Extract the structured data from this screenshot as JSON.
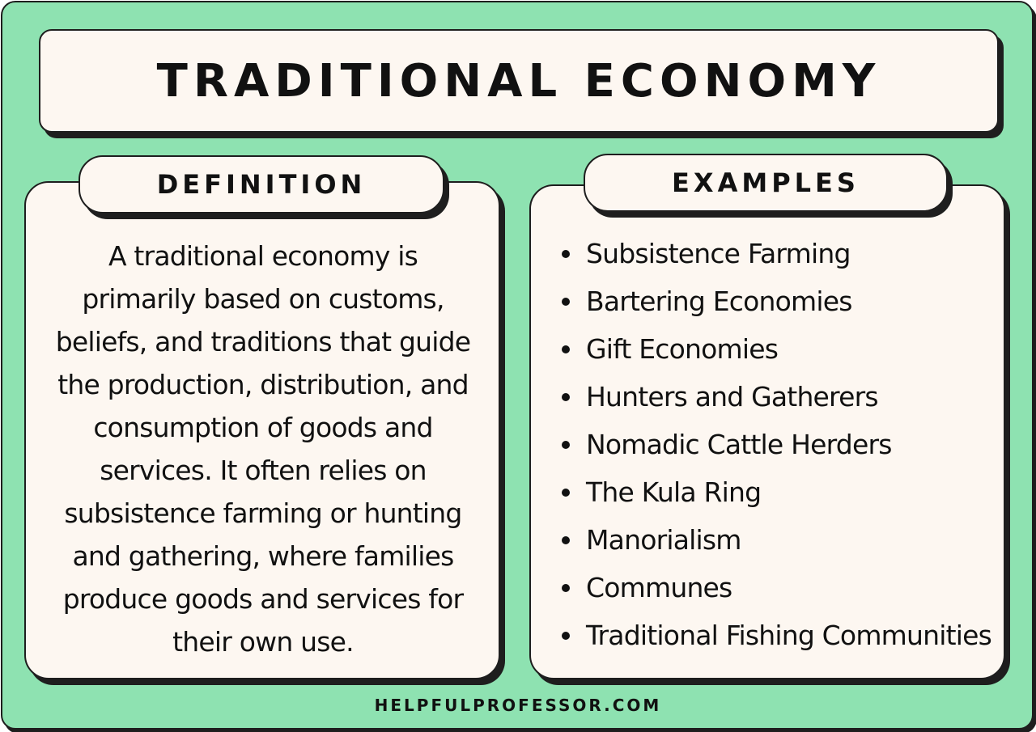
{
  "title": "TRADITIONAL ECONOMY",
  "definition": {
    "heading": "DEFINITION",
    "text": "A traditional economy is primarily based on customs, beliefs, and traditions that guide the production, distribution, and consumption of goods and services. It often relies on subsistence farming or hunting and gathering, where families produce goods and services for their own use."
  },
  "examples": {
    "heading": "EXAMPLES",
    "items": [
      "Subsistence Farming",
      "Bartering Economies",
      "Gift Economies",
      "Hunters and Gatherers",
      "Nomadic Cattle Herders",
      "The Kula Ring",
      "Manorialism",
      "Communes",
      "Traditional Fishing Communities"
    ]
  },
  "footer": "HELPFULPROFESSOR.COM",
  "colors": {
    "background": "#8ee2b1",
    "card": "#fdf7f1",
    "outline": "#1e1e1e",
    "text": "#111111"
  }
}
